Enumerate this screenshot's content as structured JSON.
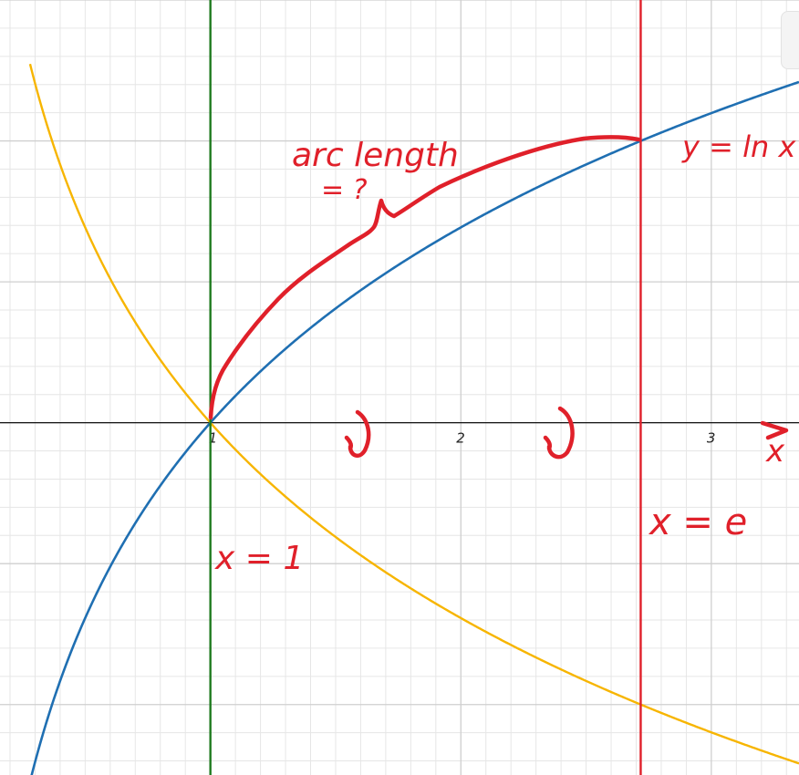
{
  "colors": {
    "grid_minor": "#e6e6e6",
    "grid_major": "#cfcfcf",
    "axis": "#111111",
    "ln_curve": "#1f6fb2",
    "neg_ln_curve": "#f7b500",
    "line_x1": "#1e7a1e",
    "line_xe": "#e0202a",
    "annotation": "#e0202a"
  },
  "chart_data": {
    "type": "line",
    "xlim": [
      0.16,
      3.35
    ],
    "ylim": [
      -1.25,
      1.5
    ],
    "x_ticks": [
      {
        "value": 1,
        "label": "1"
      },
      {
        "value": 2,
        "label": "2"
      },
      {
        "value": 3,
        "label": "3"
      }
    ],
    "minor_step": 0.1,
    "major_x_step": 1,
    "major_y_step": 0.5,
    "grid": true,
    "functions": [
      {
        "id": "ln",
        "expr": "ln x",
        "x_from": 0.27,
        "x_to": 3.35,
        "color": "#1f6fb2"
      },
      {
        "id": "neg_ln",
        "expr": "-ln x",
        "x_from": 0.28,
        "x_to": 3.35,
        "color": "#f7b500"
      }
    ],
    "vertical_lines": [
      {
        "id": "x1",
        "x": 1,
        "color": "#1e7a1e"
      },
      {
        "id": "xe",
        "x": 2.718,
        "color": "#e0202a"
      }
    ],
    "annotations": {
      "curve_label": "y = ln x",
      "arc_label_line1": "arc length",
      "arc_label_line2": "= ?",
      "x1_label": "x = 1",
      "xe_label": "x = e",
      "axis_label": "x"
    }
  }
}
